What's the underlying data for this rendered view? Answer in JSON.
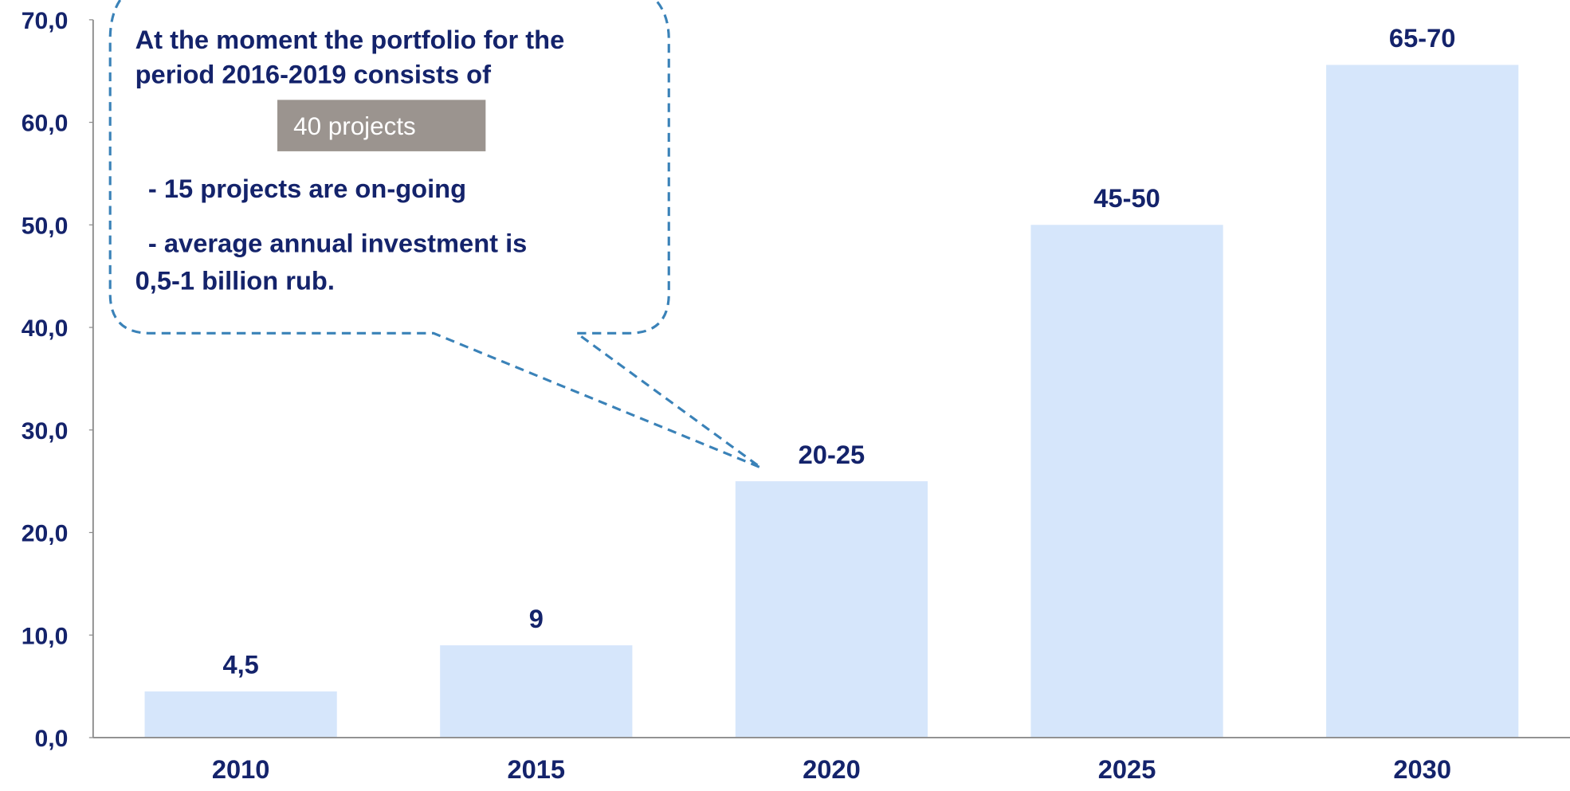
{
  "chart_data": {
    "type": "bar",
    "categories": [
      "2010",
      "2015",
      "2020",
      "2025",
      "2030"
    ],
    "values": [
      4.5,
      9,
      25,
      50,
      65.6
    ],
    "value_labels": [
      "4,5",
      "9",
      "20-25",
      "45-50",
      "65-70"
    ],
    "color": "#d6e6fb",
    "ylim": [
      0,
      70
    ],
    "yticks": [
      {
        "value": 0,
        "label": "0,0"
      },
      {
        "value": 10,
        "label": "10,0"
      },
      {
        "value": 20,
        "label": "20,0"
      },
      {
        "value": 30,
        "label": "30,0"
      },
      {
        "value": 40,
        "label": "40,0"
      },
      {
        "value": 50,
        "label": "50,0"
      },
      {
        "value": 60,
        "label": "60,0"
      },
      {
        "value": 70,
        "label": "70,0"
      }
    ],
    "grid": false,
    "callout": {
      "lines": [
        "At the moment the portfolio for the",
        "period 2016-2019 consists of"
      ],
      "highlight": "40 projects",
      "bullets": [
        "- 15 projects are on-going",
        "- average annual investment is",
        "0,5-1 billion rub."
      ]
    }
  }
}
